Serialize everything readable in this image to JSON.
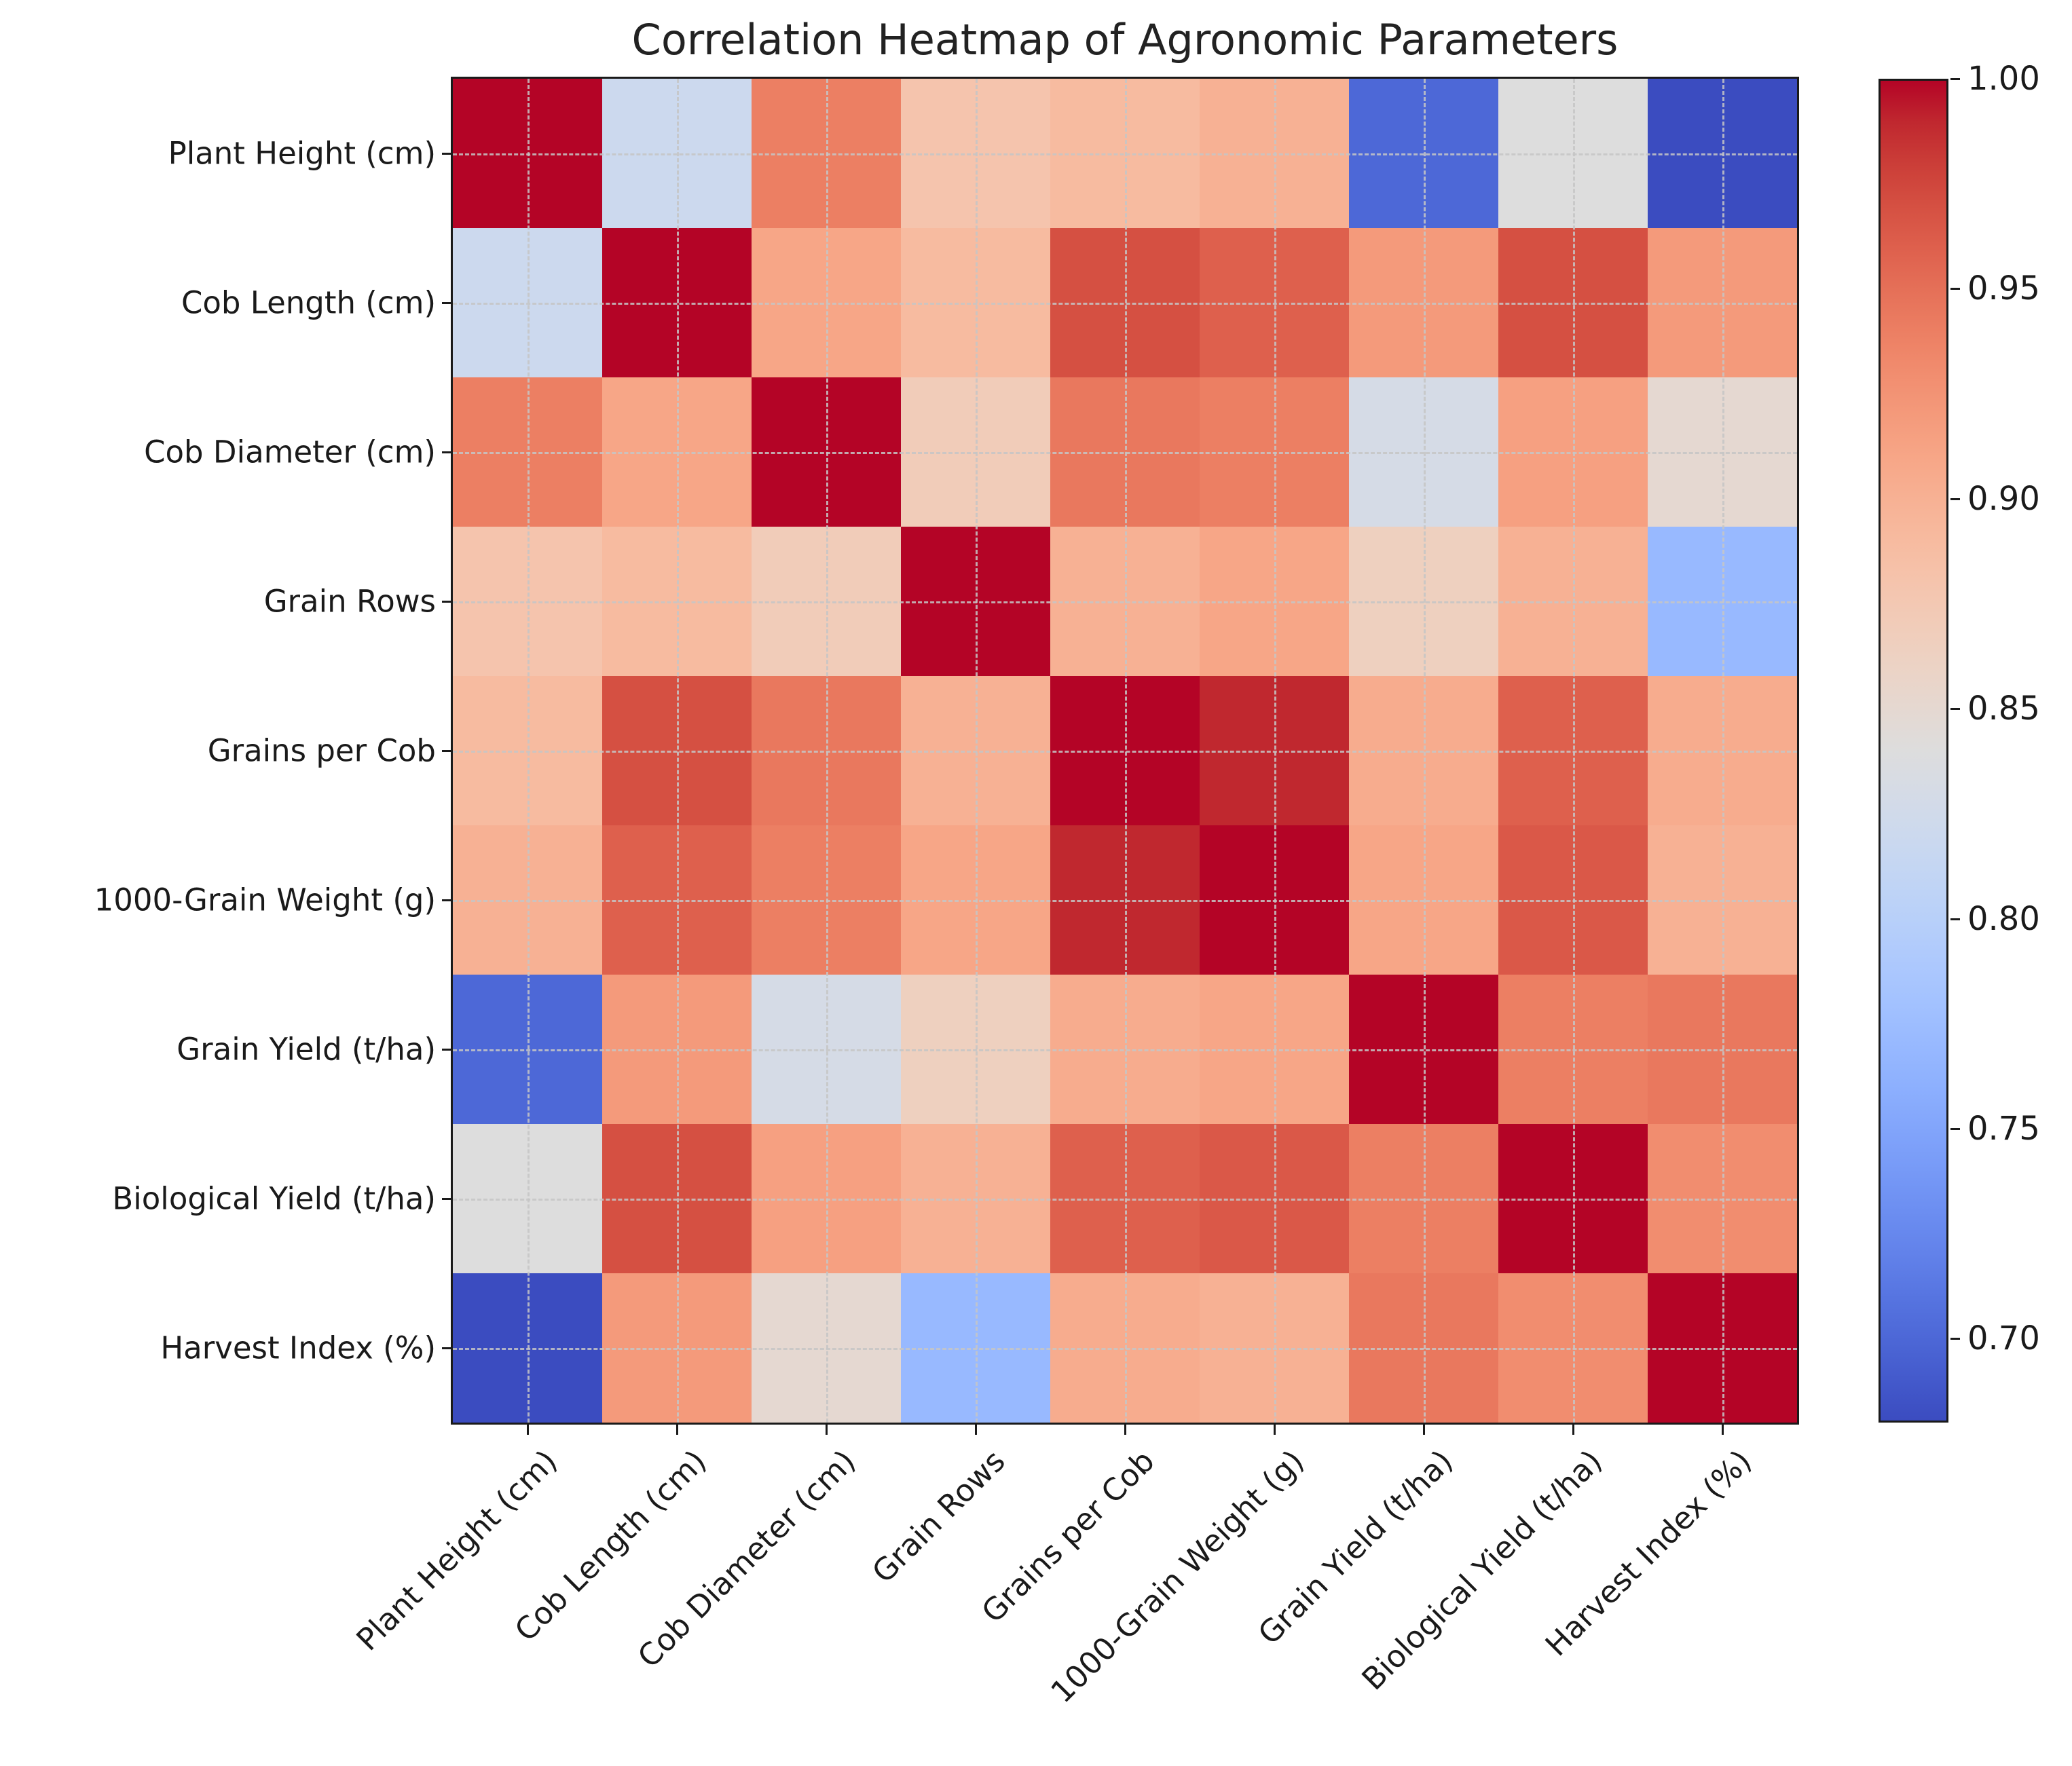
{
  "chart_data": {
    "type": "heatmap",
    "title": "Correlation Heatmap of Agronomic Parameters",
    "categories": [
      "Plant Height (cm)",
      "Cob Length (cm)",
      "Cob Diameter (cm)",
      "Grain Rows",
      "Grains per Cob",
      "1000-Grain Weight (g)",
      "Grain Yield (t/ha)",
      "Biological Yield (t/ha)",
      "Harvest Index (%)"
    ],
    "matrix": [
      [
        1.0,
        0.82,
        0.94,
        0.88,
        0.89,
        0.9,
        0.7,
        0.84,
        0.68
      ],
      [
        0.82,
        1.0,
        0.91,
        0.89,
        0.97,
        0.96,
        0.92,
        0.97,
        0.92
      ],
      [
        0.94,
        0.91,
        1.0,
        0.87,
        0.945,
        0.94,
        0.83,
        0.915,
        0.85
      ],
      [
        0.88,
        0.89,
        0.87,
        1.0,
        0.9,
        0.91,
        0.865,
        0.9,
        0.77
      ],
      [
        0.89,
        0.97,
        0.945,
        0.9,
        1.0,
        0.99,
        0.905,
        0.96,
        0.905
      ],
      [
        0.9,
        0.96,
        0.94,
        0.91,
        0.99,
        1.0,
        0.91,
        0.965,
        0.9
      ],
      [
        0.7,
        0.92,
        0.83,
        0.865,
        0.905,
        0.91,
        1.0,
        0.94,
        0.945
      ],
      [
        0.84,
        0.97,
        0.915,
        0.9,
        0.96,
        0.965,
        0.94,
        1.0,
        0.93
      ],
      [
        0.68,
        0.92,
        0.85,
        0.77,
        0.905,
        0.9,
        0.945,
        0.93,
        1.0
      ]
    ],
    "colormap": "coolwarm",
    "vmin": 0.68,
    "vmax": 1.0,
    "colorbar_ticks": [
      "1.00",
      "0.95",
      "0.90",
      "0.85",
      "0.80",
      "0.75",
      "0.70"
    ],
    "colorbar_tick_values": [
      1.0,
      0.95,
      0.9,
      0.85,
      0.8,
      0.75,
      0.7
    ],
    "grid": "dashed light-gray lines at cell centers",
    "x_tick_rotation": 45,
    "legend_position": "right-colorbar"
  }
}
